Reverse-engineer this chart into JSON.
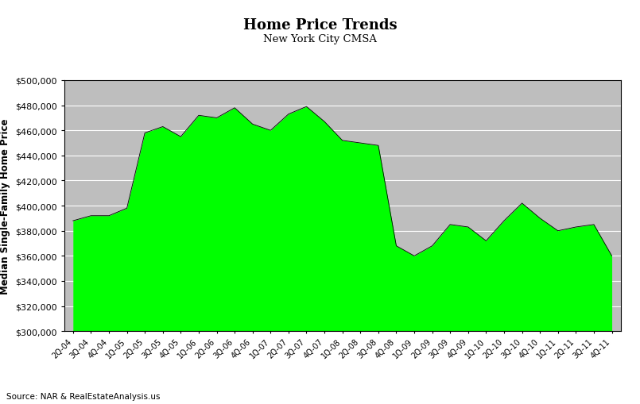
{
  "title": "Home Price Trends",
  "subtitle": "New York City CMSA",
  "ylabel": "Median Single-Family Home Price",
  "source": "Source: NAR & RealEstateAnalysis.us",
  "fill_color": "#00FF00",
  "fill_alpha": 1.0,
  "background_color": "#BEBEBE",
  "ylim": [
    300000,
    500000
  ],
  "yticks": [
    300000,
    320000,
    340000,
    360000,
    380000,
    400000,
    420000,
    440000,
    460000,
    480000,
    500000
  ],
  "quarters": [
    "2Q-04",
    "3Q-04",
    "4Q-04",
    "1Q-05",
    "2Q-05",
    "3Q-05",
    "4Q-05",
    "1Q-06",
    "2Q-06",
    "3Q-06",
    "4Q-06",
    "1Q-07",
    "2Q-07",
    "3Q-07",
    "4Q-07",
    "1Q-08",
    "2Q-08",
    "3Q-08",
    "4Q-08",
    "1Q-09",
    "2Q-09",
    "3Q-09",
    "4Q-09",
    "1Q-10",
    "2Q-10",
    "3Q-10",
    "4Q-10",
    "1Q-11",
    "2Q-11",
    "3Q-11",
    "4Q-11"
  ],
  "values": [
    388000,
    392000,
    392000,
    398000,
    458000,
    463000,
    455000,
    472000,
    470000,
    478000,
    465000,
    460000,
    473000,
    479000,
    467000,
    452000,
    450000,
    448000,
    368000,
    360000,
    368000,
    385000,
    383000,
    372000,
    388000,
    402000,
    390000,
    380000,
    383000,
    385000,
    360000
  ]
}
